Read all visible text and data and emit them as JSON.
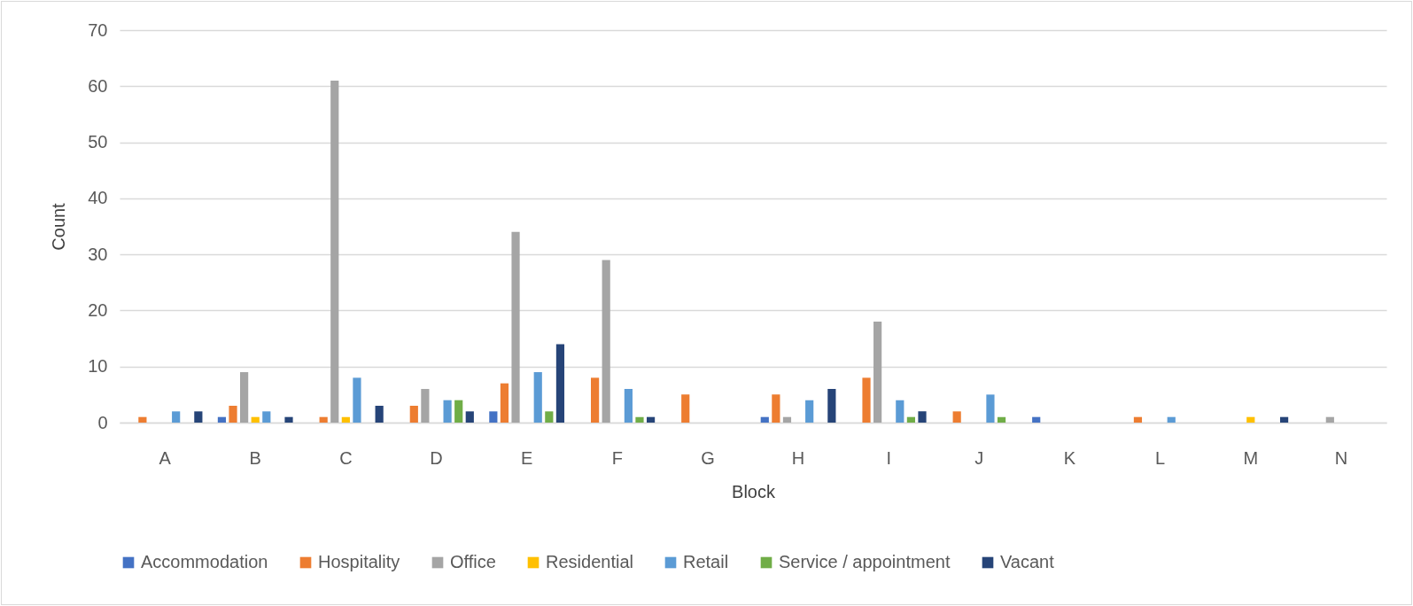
{
  "chart_data": {
    "type": "bar",
    "xlabel": "Block",
    "ylabel": "Count",
    "categories": [
      "A",
      "B",
      "C",
      "D",
      "E",
      "F",
      "G",
      "H",
      "I",
      "J",
      "K",
      "L",
      "M",
      "N"
    ],
    "series": [
      {
        "name": "Accommodation",
        "color": "#4472c4",
        "values": [
          null,
          1,
          null,
          null,
          2,
          null,
          null,
          1,
          null,
          null,
          1,
          null,
          null,
          null
        ]
      },
      {
        "name": "Hospitality",
        "color": "#ed7d31",
        "values": [
          1,
          3,
          1,
          3,
          7,
          8,
          5,
          5,
          8,
          2,
          null,
          1,
          null,
          null
        ]
      },
      {
        "name": "Office",
        "color": "#a5a5a5",
        "values": [
          null,
          9,
          61,
          6,
          34,
          29,
          null,
          1,
          18,
          null,
          null,
          null,
          null,
          1
        ]
      },
      {
        "name": "Residential",
        "color": "#ffc000",
        "values": [
          null,
          1,
          1,
          null,
          null,
          null,
          null,
          null,
          null,
          null,
          null,
          null,
          1,
          null
        ]
      },
      {
        "name": "Retail",
        "color": "#5b9bd5",
        "values": [
          2,
          2,
          8,
          4,
          9,
          6,
          null,
          4,
          4,
          5,
          null,
          1,
          null,
          null
        ]
      },
      {
        "name": "Service / appointment",
        "color": "#70ad47",
        "values": [
          null,
          null,
          null,
          4,
          2,
          1,
          null,
          null,
          1,
          1,
          null,
          null,
          null,
          null
        ]
      },
      {
        "name": "Vacant",
        "color": "#264478",
        "values": [
          2,
          1,
          3,
          2,
          14,
          1,
          null,
          6,
          2,
          null,
          null,
          null,
          1,
          null
        ]
      }
    ],
    "ylim": [
      0,
      70
    ],
    "yticks": [
      0,
      10,
      20,
      30,
      40,
      50,
      60,
      70
    ],
    "grid": "y",
    "legend": "bottom"
  }
}
